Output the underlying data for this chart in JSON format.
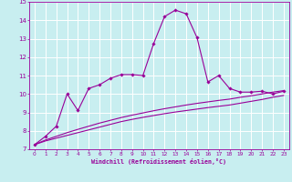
{
  "xlabel": "Windchill (Refroidissement éolien,°C)",
  "bg_color": "#c8eef0",
  "line_color": "#990099",
  "grid_color": "#ffffff",
  "xlim": [
    -0.5,
    23.5
  ],
  "ylim": [
    7,
    15
  ],
  "xticks": [
    0,
    1,
    2,
    3,
    4,
    5,
    6,
    7,
    8,
    9,
    10,
    11,
    12,
    13,
    14,
    15,
    16,
    17,
    18,
    19,
    20,
    21,
    22,
    23
  ],
  "yticks": [
    7,
    8,
    9,
    10,
    11,
    12,
    13,
    14,
    15
  ],
  "series1_x": [
    0,
    1,
    2,
    3,
    4,
    5,
    6,
    7,
    8,
    9,
    10,
    11,
    12,
    13,
    14,
    15,
    16,
    17,
    18,
    19,
    20,
    21,
    22,
    23
  ],
  "series1_y": [
    7.25,
    7.7,
    8.25,
    10.0,
    9.1,
    10.3,
    10.5,
    10.85,
    11.05,
    11.05,
    11.0,
    12.75,
    14.2,
    14.55,
    14.35,
    13.05,
    10.65,
    11.0,
    10.3,
    10.1,
    10.1,
    10.15,
    10.0,
    10.15
  ],
  "series2_x": [
    0,
    1,
    2,
    3,
    4,
    5,
    6,
    7,
    8,
    9,
    10,
    11,
    12,
    13,
    14,
    15,
    16,
    17,
    18,
    19,
    20,
    21,
    22,
    23
  ],
  "series2_y": [
    7.25,
    7.45,
    7.6,
    7.75,
    7.9,
    8.05,
    8.2,
    8.35,
    8.5,
    8.62,
    8.73,
    8.83,
    8.93,
    9.02,
    9.1,
    9.18,
    9.26,
    9.33,
    9.4,
    9.5,
    9.6,
    9.7,
    9.82,
    9.92
  ],
  "series3_x": [
    0,
    1,
    2,
    3,
    4,
    5,
    6,
    7,
    8,
    9,
    10,
    11,
    12,
    13,
    14,
    15,
    16,
    17,
    18,
    19,
    20,
    21,
    22,
    23
  ],
  "series3_y": [
    7.25,
    7.5,
    7.7,
    7.9,
    8.08,
    8.25,
    8.42,
    8.57,
    8.72,
    8.85,
    8.97,
    9.09,
    9.2,
    9.3,
    9.4,
    9.49,
    9.57,
    9.65,
    9.72,
    9.82,
    9.9,
    10.0,
    10.1,
    10.18
  ]
}
